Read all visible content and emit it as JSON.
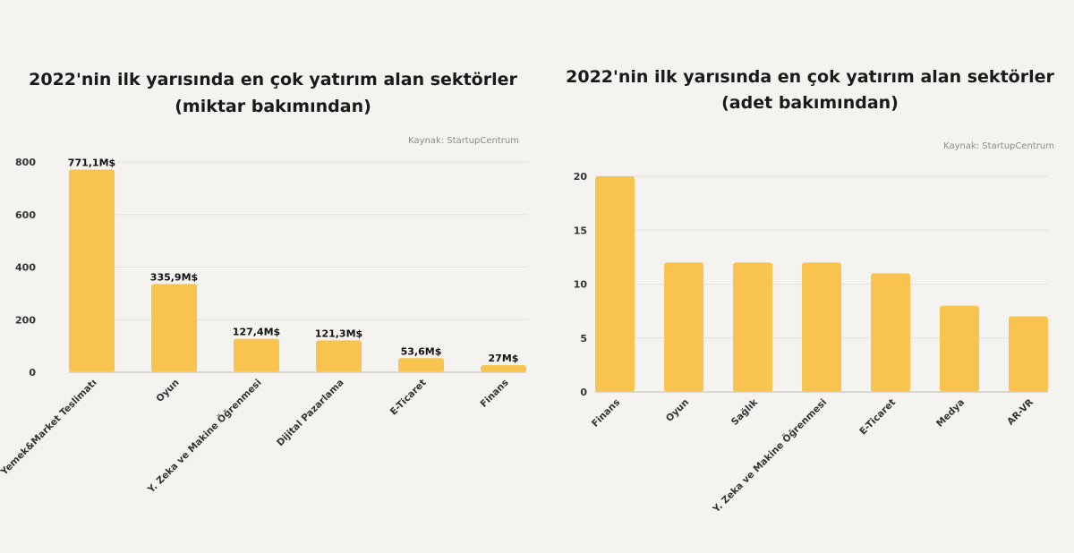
{
  "colors": {
    "bar": "#f8c44f",
    "background": "#f4f3ef"
  },
  "chart_data": [
    {
      "type": "bar",
      "title": "2022'nin ilk yarısında en çok yatırım alan sektörler",
      "subtitle": "(miktar bakımından)",
      "source": "Kaynak: StartupCentrum",
      "categories": [
        "Yemek&Market Teslimatı",
        "Oyun",
        "Y. Zeka ve Makine Öğrenmesi",
        "Dijital Pazarlama",
        "E-Ticaret",
        "Finans"
      ],
      "values": [
        771.1,
        335.9,
        127.4,
        121.3,
        53.6,
        27
      ],
      "data_labels": [
        "771,1M$",
        "335,9M$",
        "127,4M$",
        "121,3M$",
        "53,6M$",
        "27M$"
      ],
      "yticks": [
        0,
        200,
        400,
        600,
        800
      ],
      "ylim": [
        0,
        800
      ],
      "grid": true
    },
    {
      "type": "bar",
      "title": "2022'nin ilk yarısında en çok yatırım alan sektörler",
      "subtitle": "(adet bakımından)",
      "source": "Kaynak: StartupCentrum",
      "categories": [
        "Finans",
        "Oyun",
        "Sağlık",
        "Y. Zeka ve Makine Öğrenmesi",
        "E-Ticaret",
        "Medya",
        "AR-VR"
      ],
      "values": [
        20,
        12,
        12,
        12,
        11,
        8,
        7
      ],
      "yticks": [
        0,
        5,
        10,
        15,
        20
      ],
      "ylim": [
        0,
        20
      ],
      "grid": true
    }
  ]
}
